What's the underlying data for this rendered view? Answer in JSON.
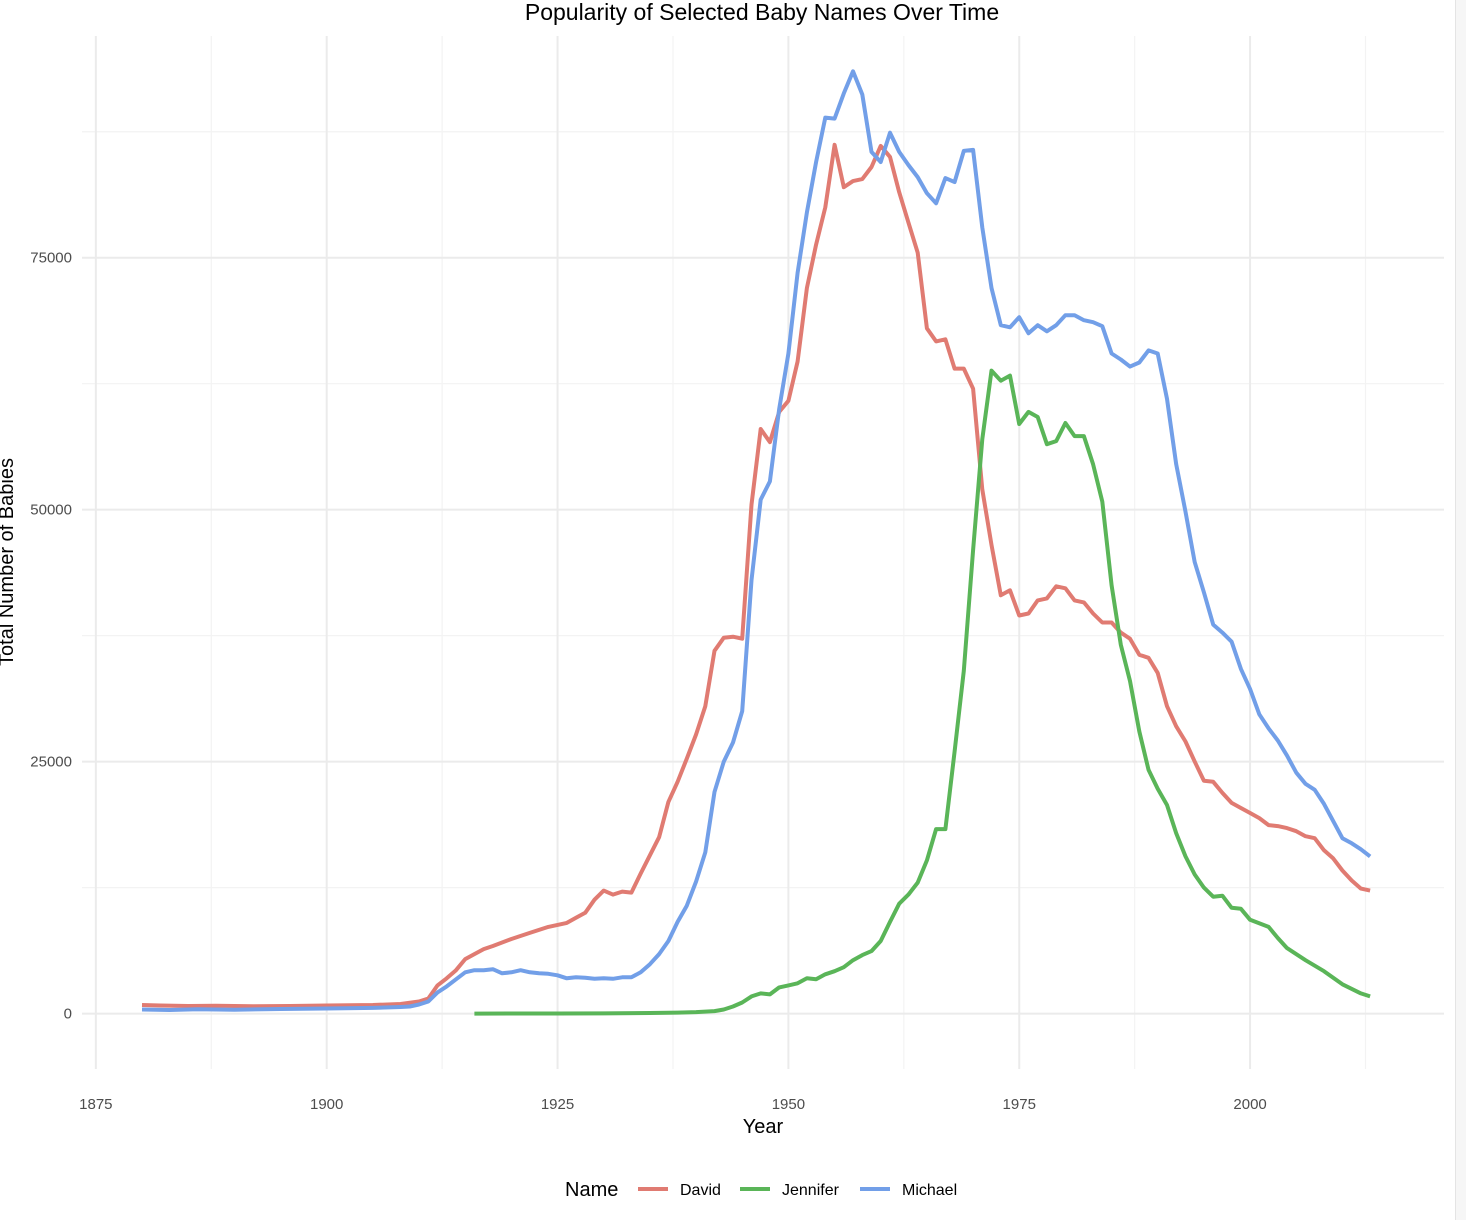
{
  "chart_data": {
    "type": "line",
    "title": "Popularity of Selected Baby Names Over Time",
    "xlabel": "Year",
    "ylabel": "Total Number of Babies",
    "xlim": [
      1873.5,
      2021
    ],
    "ylim": [
      -5500,
      97000
    ],
    "x_ticks": [
      1875,
      1900,
      1925,
      1950,
      1975,
      2000
    ],
    "y_ticks": [
      0,
      25000,
      50000,
      75000
    ],
    "grid": true,
    "legend": {
      "title": "Name",
      "position": "bottom"
    },
    "series": [
      {
        "name": "David",
        "color": "#e07b72",
        "points": [
          [
            1880,
            850
          ],
          [
            1882,
            800
          ],
          [
            1885,
            750
          ],
          [
            1888,
            780
          ],
          [
            1892,
            720
          ],
          [
            1896,
            750
          ],
          [
            1900,
            800
          ],
          [
            1905,
            850
          ],
          [
            1908,
            950
          ],
          [
            1910,
            1200
          ],
          [
            1911,
            1500
          ],
          [
            1912,
            2800
          ],
          [
            1913,
            3500
          ],
          [
            1914,
            4300
          ],
          [
            1915,
            5400
          ],
          [
            1916,
            5900
          ],
          [
            1917,
            6400
          ],
          [
            1918,
            6700
          ],
          [
            1920,
            7400
          ],
          [
            1922,
            8000
          ],
          [
            1924,
            8600
          ],
          [
            1926,
            9000
          ],
          [
            1927,
            9500
          ],
          [
            1928,
            10000
          ],
          [
            1929,
            11300
          ],
          [
            1930,
            12200
          ],
          [
            1931,
            11800
          ],
          [
            1932,
            12100
          ],
          [
            1933,
            12000
          ],
          [
            1934,
            13900
          ],
          [
            1935,
            15700
          ],
          [
            1936,
            17500
          ],
          [
            1937,
            21000
          ],
          [
            1938,
            23000
          ],
          [
            1939,
            25300
          ],
          [
            1940,
            27700
          ],
          [
            1941,
            30500
          ],
          [
            1942,
            36000
          ],
          [
            1943,
            37300
          ],
          [
            1944,
            37400
          ],
          [
            1945,
            37200
          ],
          [
            1946,
            50500
          ],
          [
            1947,
            58000
          ],
          [
            1948,
            56700
          ],
          [
            1949,
            59700
          ],
          [
            1950,
            60800
          ],
          [
            1951,
            64700
          ],
          [
            1952,
            72000
          ],
          [
            1953,
            76300
          ],
          [
            1954,
            80000
          ],
          [
            1955,
            86200
          ],
          [
            1956,
            82000
          ],
          [
            1957,
            82600
          ],
          [
            1958,
            82800
          ],
          [
            1959,
            84000
          ],
          [
            1960,
            86100
          ],
          [
            1961,
            85000
          ],
          [
            1962,
            81500
          ],
          [
            1963,
            78500
          ],
          [
            1964,
            75500
          ],
          [
            1965,
            68000
          ],
          [
            1966,
            66700
          ],
          [
            1967,
            66900
          ],
          [
            1968,
            64000
          ],
          [
            1969,
            64000
          ],
          [
            1970,
            62000
          ],
          [
            1971,
            52000
          ],
          [
            1972,
            46500
          ],
          [
            1973,
            41500
          ],
          [
            1974,
            42000
          ],
          [
            1975,
            39500
          ],
          [
            1976,
            39700
          ],
          [
            1977,
            41000
          ],
          [
            1978,
            41200
          ],
          [
            1979,
            42400
          ],
          [
            1980,
            42200
          ],
          [
            1981,
            41000
          ],
          [
            1982,
            40800
          ],
          [
            1983,
            39700
          ],
          [
            1984,
            38800
          ],
          [
            1985,
            38800
          ],
          [
            1986,
            37800
          ],
          [
            1987,
            37200
          ],
          [
            1988,
            35600
          ],
          [
            1989,
            35300
          ],
          [
            1990,
            33800
          ],
          [
            1991,
            30500
          ],
          [
            1992,
            28500
          ],
          [
            1993,
            27000
          ],
          [
            1994,
            25000
          ],
          [
            1995,
            23100
          ],
          [
            1996,
            23000
          ],
          [
            1997,
            21900
          ],
          [
            1998,
            20900
          ],
          [
            1999,
            20400
          ],
          [
            2000,
            19900
          ],
          [
            2001,
            19400
          ],
          [
            2002,
            18700
          ],
          [
            2003,
            18600
          ],
          [
            2004,
            18400
          ],
          [
            2005,
            18100
          ],
          [
            2006,
            17600
          ],
          [
            2007,
            17400
          ],
          [
            2008,
            16200
          ],
          [
            2009,
            15400
          ],
          [
            2010,
            14200
          ],
          [
            2011,
            13200
          ],
          [
            2012,
            12400
          ],
          [
            2013,
            12200
          ]
        ]
      },
      {
        "name": "Jennifer",
        "color": "#5ab558",
        "points": [
          [
            1916,
            0
          ],
          [
            1925,
            5
          ],
          [
            1930,
            20
          ],
          [
            1935,
            60
          ],
          [
            1938,
            100
          ],
          [
            1940,
            150
          ],
          [
            1942,
            250
          ],
          [
            1943,
            400
          ],
          [
            1944,
            700
          ],
          [
            1945,
            1100
          ],
          [
            1946,
            1700
          ],
          [
            1947,
            2000
          ],
          [
            1948,
            1900
          ],
          [
            1949,
            2600
          ],
          [
            1950,
            2800
          ],
          [
            1951,
            3000
          ],
          [
            1952,
            3500
          ],
          [
            1953,
            3400
          ],
          [
            1954,
            3900
          ],
          [
            1955,
            4200
          ],
          [
            1956,
            4600
          ],
          [
            1957,
            5300
          ],
          [
            1958,
            5800
          ],
          [
            1959,
            6200
          ],
          [
            1960,
            7200
          ],
          [
            1961,
            9100
          ],
          [
            1962,
            10900
          ],
          [
            1963,
            11800
          ],
          [
            1964,
            13000
          ],
          [
            1965,
            15200
          ],
          [
            1966,
            18300
          ],
          [
            1967,
            18300
          ],
          [
            1968,
            26000
          ],
          [
            1969,
            34000
          ],
          [
            1970,
            46000
          ],
          [
            1971,
            57000
          ],
          [
            1972,
            63800
          ],
          [
            1973,
            62800
          ],
          [
            1974,
            63300
          ],
          [
            1975,
            58500
          ],
          [
            1976,
            59700
          ],
          [
            1977,
            59200
          ],
          [
            1978,
            56500
          ],
          [
            1979,
            56800
          ],
          [
            1980,
            58600
          ],
          [
            1981,
            57300
          ],
          [
            1982,
            57300
          ],
          [
            1983,
            54500
          ],
          [
            1984,
            50800
          ],
          [
            1985,
            42500
          ],
          [
            1986,
            36600
          ],
          [
            1987,
            33000
          ],
          [
            1988,
            28000
          ],
          [
            1989,
            24200
          ],
          [
            1990,
            22300
          ],
          [
            1991,
            20700
          ],
          [
            1992,
            17900
          ],
          [
            1993,
            15600
          ],
          [
            1994,
            13800
          ],
          [
            1995,
            12500
          ],
          [
            1996,
            11600
          ],
          [
            1997,
            11700
          ],
          [
            1998,
            10500
          ],
          [
            1999,
            10400
          ],
          [
            2000,
            9300
          ],
          [
            2002,
            8600
          ],
          [
            2003,
            7500
          ],
          [
            2004,
            6500
          ],
          [
            2006,
            5300
          ],
          [
            2008,
            4200
          ],
          [
            2010,
            2900
          ],
          [
            2012,
            2000
          ],
          [
            2013,
            1700
          ]
        ]
      },
      {
        "name": "Michael",
        "color": "#729fe8",
        "points": [
          [
            1880,
            400
          ],
          [
            1883,
            350
          ],
          [
            1886,
            420
          ],
          [
            1890,
            380
          ],
          [
            1895,
            450
          ],
          [
            1900,
            500
          ],
          [
            1905,
            560
          ],
          [
            1908,
            650
          ],
          [
            1909,
            700
          ],
          [
            1910,
            900
          ],
          [
            1911,
            1200
          ],
          [
            1912,
            2100
          ],
          [
            1913,
            2700
          ],
          [
            1914,
            3400
          ],
          [
            1915,
            4100
          ],
          [
            1916,
            4300
          ],
          [
            1917,
            4300
          ],
          [
            1918,
            4400
          ],
          [
            1919,
            4000
          ],
          [
            1920,
            4100
          ],
          [
            1921,
            4300
          ],
          [
            1922,
            4100
          ],
          [
            1923,
            4000
          ],
          [
            1924,
            3950
          ],
          [
            1925,
            3800
          ],
          [
            1926,
            3500
          ],
          [
            1927,
            3600
          ],
          [
            1928,
            3550
          ],
          [
            1929,
            3450
          ],
          [
            1930,
            3500
          ],
          [
            1931,
            3450
          ],
          [
            1932,
            3600
          ],
          [
            1933,
            3600
          ],
          [
            1934,
            4100
          ],
          [
            1935,
            4900
          ],
          [
            1936,
            5900
          ],
          [
            1937,
            7200
          ],
          [
            1938,
            9100
          ],
          [
            1939,
            10700
          ],
          [
            1940,
            13100
          ],
          [
            1941,
            16000
          ],
          [
            1942,
            22000
          ],
          [
            1943,
            25000
          ],
          [
            1944,
            26900
          ],
          [
            1945,
            30000
          ],
          [
            1946,
            43000
          ],
          [
            1947,
            51000
          ],
          [
            1948,
            52800
          ],
          [
            1949,
            60000
          ],
          [
            1950,
            65500
          ],
          [
            1951,
            73500
          ],
          [
            1952,
            79500
          ],
          [
            1953,
            84500
          ],
          [
            1954,
            88900
          ],
          [
            1955,
            88800
          ],
          [
            1956,
            91300
          ],
          [
            1957,
            93500
          ],
          [
            1958,
            91200
          ],
          [
            1959,
            85500
          ],
          [
            1960,
            84500
          ],
          [
            1961,
            87400
          ],
          [
            1962,
            85500
          ],
          [
            1963,
            84200
          ],
          [
            1964,
            83000
          ],
          [
            1965,
            81400
          ],
          [
            1966,
            80400
          ],
          [
            1967,
            82900
          ],
          [
            1968,
            82500
          ],
          [
            1969,
            85600
          ],
          [
            1970,
            85700
          ],
          [
            1971,
            78000
          ],
          [
            1972,
            72000
          ],
          [
            1973,
            68300
          ],
          [
            1974,
            68100
          ],
          [
            1975,
            69100
          ],
          [
            1976,
            67500
          ],
          [
            1977,
            68300
          ],
          [
            1978,
            67700
          ],
          [
            1979,
            68300
          ],
          [
            1980,
            69300
          ],
          [
            1981,
            69300
          ],
          [
            1982,
            68800
          ],
          [
            1983,
            68600
          ],
          [
            1984,
            68200
          ],
          [
            1985,
            65500
          ],
          [
            1986,
            64900
          ],
          [
            1987,
            64200
          ],
          [
            1988,
            64600
          ],
          [
            1989,
            65800
          ],
          [
            1990,
            65500
          ],
          [
            1991,
            61000
          ],
          [
            1992,
            54500
          ],
          [
            1993,
            49800
          ],
          [
            1994,
            44800
          ],
          [
            1995,
            41800
          ],
          [
            1996,
            38600
          ],
          [
            1997,
            37800
          ],
          [
            1998,
            36900
          ],
          [
            1999,
            34200
          ],
          [
            2000,
            32200
          ],
          [
            2001,
            29700
          ],
          [
            2002,
            28300
          ],
          [
            2003,
            27100
          ],
          [
            2004,
            25600
          ],
          [
            2005,
            23900
          ],
          [
            2006,
            22800
          ],
          [
            2007,
            22200
          ],
          [
            2008,
            20800
          ],
          [
            2009,
            19100
          ],
          [
            2010,
            17400
          ],
          [
            2011,
            16900
          ],
          [
            2012,
            16300
          ],
          [
            2013,
            15600
          ]
        ]
      }
    ]
  }
}
